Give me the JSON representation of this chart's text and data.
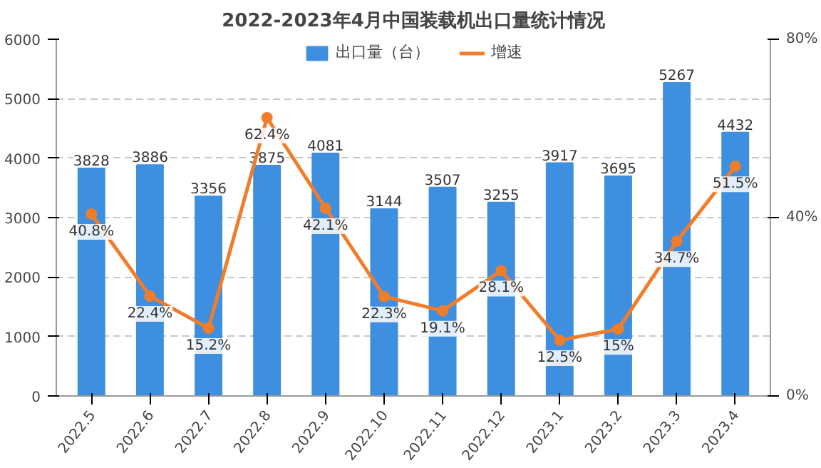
{
  "chart_data": {
    "type": "bar",
    "title": "2022-2023年4月中国装载机出口量统计情况",
    "categories": [
      "2022.5",
      "2022.6",
      "2022.7",
      "2022.8",
      "2022.9",
      "2022.10",
      "2022.11",
      "2022.12",
      "2023.1",
      "2023.2",
      "2023.3",
      "2023.4"
    ],
    "series": [
      {
        "name": "出口量（台）",
        "color": "#3f8fe0",
        "values": [
          3828,
          3886,
          3356,
          3875,
          4081,
          3144,
          3507,
          3255,
          3917,
          3695,
          5267,
          4432
        ],
        "value_labels": [
          "3828",
          "3886",
          "3356",
          "3875",
          "4081",
          "3144",
          "3507",
          "3255",
          "3917",
          "3695",
          "5267",
          "4432"
        ]
      },
      {
        "name": "增速",
        "type": "line",
        "axis": "y2",
        "color": "#f07d2a",
        "marker": "circle",
        "values": [
          40.8,
          22.4,
          15.2,
          62.4,
          42.1,
          22.3,
          19.1,
          28.1,
          12.5,
          15,
          34.7,
          51.5
        ],
        "value_labels": [
          "40.8%",
          "22.4%",
          "15.2%",
          "62.4%",
          "42.1%",
          "22.3%",
          "19.1%",
          "28.1%",
          "12.5%",
          "15%",
          "34.7%",
          "51.5%"
        ]
      }
    ],
    "ylim": [
      0,
      6000
    ],
    "yticks": [
      0,
      1000,
      2000,
      3000,
      4000,
      5000,
      6000
    ],
    "y2lim": [
      0,
      80
    ],
    "y2ticks": [
      {
        "value": 0,
        "label": "0%"
      },
      {
        "value": 40,
        "label": "40%"
      },
      {
        "value": 80,
        "label": "80%"
      }
    ],
    "grid": "y",
    "legend": "top",
    "line_style": "solid"
  }
}
